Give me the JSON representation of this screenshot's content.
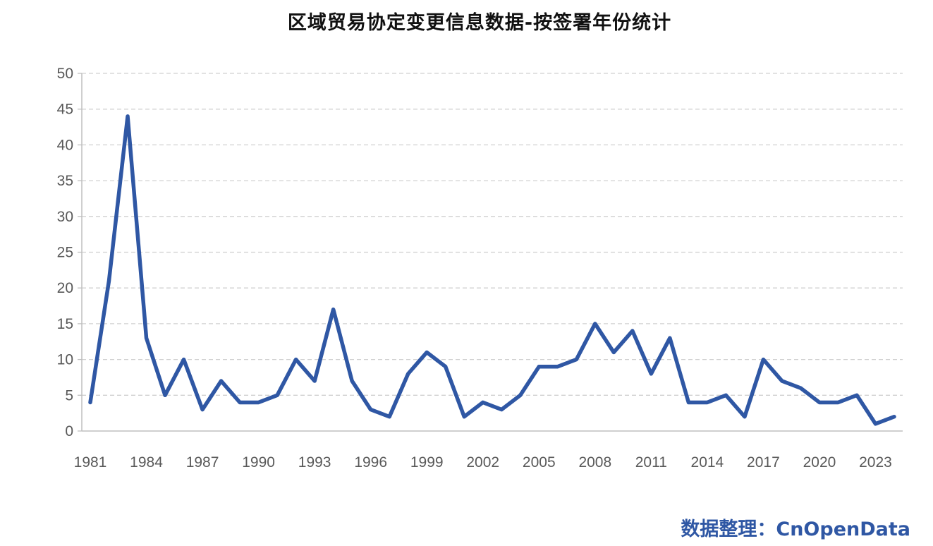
{
  "chart_data": {
    "type": "line",
    "title": "区域贸易协定变更信息数据-按签署年份统计",
    "xlabel": "",
    "ylabel": "",
    "x": [
      1981,
      1982,
      1983,
      1984,
      1985,
      1986,
      1987,
      1988,
      1989,
      1990,
      1991,
      1992,
      1993,
      1994,
      1995,
      1996,
      1997,
      1998,
      1999,
      2000,
      2001,
      2002,
      2003,
      2004,
      2005,
      2006,
      2007,
      2008,
      2009,
      2010,
      2011,
      2012,
      2013,
      2014,
      2015,
      2016,
      2017,
      2018,
      2019,
      2020,
      2021,
      2022,
      2023,
      2024
    ],
    "x_tick_labels": [
      "1981",
      "1984",
      "1987",
      "1990",
      "1993",
      "1996",
      "1999",
      "2002",
      "2005",
      "2008",
      "2011",
      "2014",
      "2017",
      "2020",
      "2023"
    ],
    "series": [
      {
        "values": [
          4,
          21,
          44,
          13,
          5,
          10,
          3,
          7,
          4,
          4,
          5,
          10,
          7,
          17,
          7,
          3,
          2,
          8,
          11,
          9,
          2,
          4,
          3,
          5,
          9,
          9,
          10,
          15,
          11,
          14,
          8,
          13,
          4,
          4,
          5,
          2,
          10,
          7,
          6,
          4,
          4,
          5,
          1,
          2
        ],
        "color": "#2f57a4"
      }
    ],
    "ylim": [
      0,
      50
    ],
    "y_ticks": [
      0,
      5,
      10,
      15,
      20,
      25,
      30,
      35,
      40,
      45,
      50
    ],
    "grid": "horizontal-dashed",
    "legend": "none"
  },
  "footer": {
    "credit": "数据整理：CnOpenData"
  },
  "colors": {
    "line": "#2f57a4",
    "grid": "#d0d0d0",
    "axis": "#bfbfbf",
    "tick_text": "#595959",
    "credit": "#2f57a4"
  }
}
